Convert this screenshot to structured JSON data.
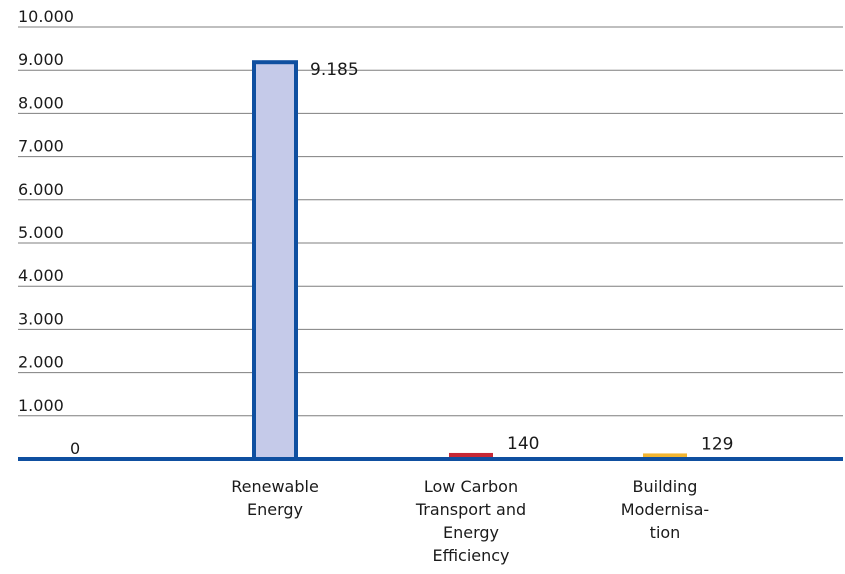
{
  "chart_data": {
    "type": "bar",
    "title": "",
    "xlabel": "",
    "ylabel": "",
    "ylim": [
      0,
      10000
    ],
    "yticks": [
      0,
      1000,
      2000,
      3000,
      4000,
      5000,
      6000,
      7000,
      8000,
      9000,
      10000
    ],
    "ytick_labels": [
      "0",
      "1.000",
      "2.000",
      "3.000",
      "4.000",
      "5.000",
      "6.000",
      "7.000",
      "8.000",
      "9.000",
      "10.000"
    ],
    "grid": true,
    "legend": "none",
    "categories": [
      [
        "Renewable",
        "Energy"
      ],
      [
        "Low Carbon",
        "Transport and",
        "Energy",
        "Efficiency"
      ],
      [
        "Building",
        "Modernisa-",
        "tion"
      ]
    ],
    "values": [
      9185,
      140,
      129
    ],
    "value_labels": [
      "9.185",
      "140",
      "129"
    ],
    "colors": {
      "bar_fills": [
        "#c5cae9",
        "#c62835",
        "#f2b531"
      ],
      "bar_outline": "#0f4fa0",
      "axis": "#0f4fa0",
      "grid": "#7f7f7f"
    }
  }
}
